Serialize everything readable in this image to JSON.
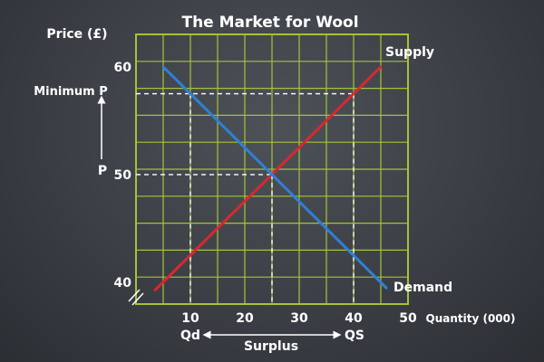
{
  "chart_data": {
    "type": "line",
    "title": "The Market for Wool",
    "ylabel": "Price (£)",
    "xlabel": "Quantity (000)",
    "xlim": [
      0,
      50
    ],
    "ylim": [
      38,
      63
    ],
    "x_ticks": [
      10,
      20,
      30,
      40,
      50
    ],
    "y_ticks": [
      40,
      50,
      60
    ],
    "grid": true,
    "series": [
      {
        "name": "Supply",
        "color": "#d8282f",
        "x": [
          3.5,
          45
        ],
        "y": [
          39.3,
          60
        ]
      },
      {
        "name": "Demand",
        "color": "#2f7fd6",
        "x": [
          5,
          46
        ],
        "y": [
          60,
          39.5
        ]
      }
    ],
    "equilibrium": {
      "x": 25,
      "y": 50,
      "label": "P"
    },
    "minimum_price": {
      "y": 57.5,
      "label": "Minimum P"
    },
    "quantity_demanded": {
      "x": 10,
      "label": "Qd"
    },
    "quantity_supplied": {
      "x": 40,
      "label": "QS"
    },
    "surplus_label": "Surplus",
    "axis_color": "#a6c238",
    "dashed_color": "#ffffff"
  }
}
